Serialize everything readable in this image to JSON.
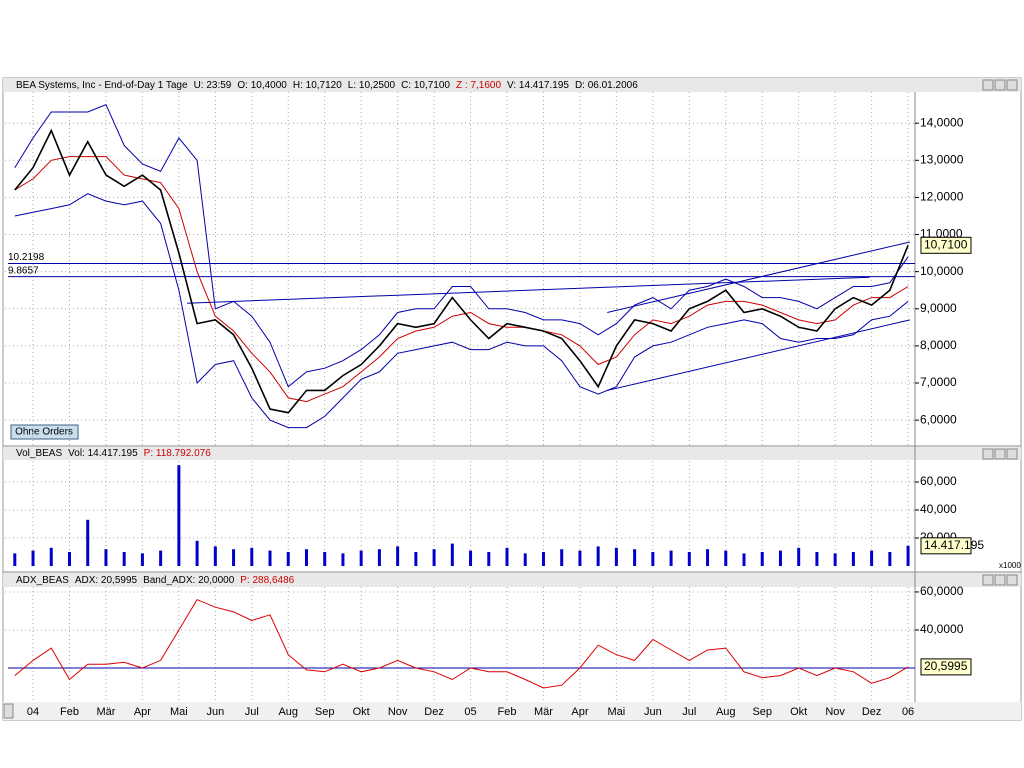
{
  "chart_data": [
    {
      "type": "line",
      "title": "BEA Systems, Inc - End-of-Day 1 Tage",
      "info": [
        "U: 23:59",
        "O: 10,4000",
        "H: 10,7120",
        "L: 10,2500",
        "C: 10,7100"
      ],
      "info_highlight": "Z : 7,1600",
      "info_tail": [
        "V: 14.417.195",
        "D: 06.01.2006"
      ],
      "ylim": [
        5.33,
        14.84
      ],
      "yticks": [
        {
          "value": 6,
          "label": "6,0000"
        },
        {
          "value": 7,
          "label": "7,0000"
        },
        {
          "value": 8,
          "label": "8,0000"
        },
        {
          "value": 9,
          "label": "9,0000"
        },
        {
          "value": 10,
          "label": "10,0000"
        },
        {
          "value": 11,
          "label": "11,0000"
        },
        {
          "value": 12,
          "label": "12,0000"
        },
        {
          "value": 13,
          "label": "13,0000"
        },
        {
          "value": 14,
          "label": "14,0000"
        }
      ],
      "series": [
        {
          "color": "#0000aa",
          "values": [
            12.8,
            13.6,
            14.3,
            14.3,
            14.3,
            14.5,
            13.4,
            12.9,
            12.7,
            13.6,
            13.0,
            9.0,
            9.2,
            8.8,
            8.1,
            6.9,
            7.3,
            7.4,
            7.6,
            7.9,
            8.3,
            8.9,
            9.0,
            9.0,
            9.6,
            9.6,
            9.0,
            9.0,
            8.9,
            8.7,
            8.7,
            8.6,
            8.3,
            8.6,
            9.1,
            9.3,
            9.0,
            9.5,
            9.6,
            9.8,
            9.6,
            9.3,
            9.3,
            9.2,
            9.0,
            9.3,
            9.6,
            9.6,
            9.7,
            10.4
          ]
        },
        {
          "color": "#0000aa",
          "values": [
            11.5,
            11.6,
            11.7,
            11.8,
            12.1,
            11.9,
            11.8,
            11.9,
            11.3,
            9.5,
            7.0,
            7.5,
            7.6,
            6.6,
            6.0,
            5.8,
            5.8,
            6.1,
            6.6,
            7.1,
            7.3,
            7.8,
            7.9,
            8.0,
            8.1,
            7.9,
            7.9,
            8.1,
            8.0,
            8.0,
            7.6,
            6.9,
            6.7,
            6.9,
            7.7,
            8.0,
            8.1,
            8.3,
            8.5,
            8.6,
            8.7,
            8.6,
            8.2,
            8.1,
            8.2,
            8.2,
            8.3,
            8.7,
            8.8,
            9.2
          ]
        },
        {
          "color": "#cc0000",
          "values": [
            12.2,
            12.5,
            13.0,
            13.1,
            13.1,
            13.1,
            12.6,
            12.5,
            12.4,
            11.7,
            10.0,
            8.8,
            8.4,
            7.8,
            7.3,
            6.6,
            6.5,
            6.7,
            6.9,
            7.3,
            7.7,
            8.2,
            8.4,
            8.5,
            8.8,
            8.9,
            8.6,
            8.5,
            8.5,
            8.4,
            8.3,
            8.0,
            7.5,
            7.7,
            8.3,
            8.7,
            8.6,
            8.8,
            9.1,
            9.2,
            9.2,
            9.1,
            8.9,
            8.7,
            8.6,
            8.7,
            9.1,
            9.3,
            9.3,
            9.6
          ]
        },
        {
          "color": "#000000",
          "values": [
            12.2,
            12.8,
            13.8,
            12.6,
            13.5,
            12.6,
            12.3,
            12.6,
            12.2,
            10.5,
            8.6,
            8.7,
            8.3,
            7.4,
            6.3,
            6.2,
            6.8,
            6.8,
            7.2,
            7.5,
            8.0,
            8.6,
            8.5,
            8.6,
            9.3,
            8.7,
            8.2,
            8.6,
            8.5,
            8.4,
            8.2,
            7.6,
            6.9,
            8.0,
            8.7,
            8.6,
            8.4,
            9.0,
            9.2,
            9.5,
            8.9,
            9.0,
            8.8,
            8.5,
            8.4,
            9.0,
            9.3,
            9.1,
            9.5,
            10.71
          ]
        }
      ],
      "levels": [
        {
          "value": 10.2198,
          "label": "10.2198"
        },
        {
          "value": 9.8657,
          "label": "9.8657"
        }
      ],
      "level_color": "#0000aa",
      "trendlines": [
        {
          "x": [
            9.45,
            46.9
          ],
          "y": [
            9.15,
            9.85
          ]
        },
        {
          "x": [
            32.5,
            49.1
          ],
          "y": [
            8.9,
            10.8
          ]
        },
        {
          "x": [
            32.5,
            49.1
          ],
          "y": [
            6.8,
            8.7
          ]
        }
      ],
      "last": {
        "value": 10.71,
        "label": "10,7100"
      },
      "button": "Ohne Orders"
    },
    {
      "type": "bar",
      "title": "Vol_BEAS",
      "info": [
        "Vol: 14.417.195"
      ],
      "info_highlight": "P: 118.792.076",
      "ylim": [
        0,
        75
      ],
      "yticks": [
        {
          "value": 20,
          "label": "20,000"
        },
        {
          "value": 40,
          "label": "40,000"
        },
        {
          "value": 60,
          "label": "60,000"
        }
      ],
      "color": "#0000cc",
      "values": [
        9,
        11,
        13,
        10,
        33,
        12,
        10,
        9,
        11,
        72,
        18,
        14,
        12,
        13,
        11,
        10,
        12,
        10,
        9,
        11,
        12,
        14,
        10,
        12,
        16,
        11,
        10,
        13,
        9,
        10,
        12,
        11,
        14,
        13,
        12,
        10,
        11,
        10,
        12,
        11,
        9,
        10,
        11,
        13,
        10,
        9,
        10,
        11,
        10,
        14.417195
      ],
      "last": {
        "value": 14.417195,
        "label": "14.417.195"
      },
      "unit_label": "x1000"
    },
    {
      "type": "line",
      "title": "ADX_BEAS",
      "info": [
        "ADX: 20,5995",
        "Band_ADX: 20,0000"
      ],
      "info_highlight": "P: 288,6486",
      "ylim": [
        3.2,
        62.6
      ],
      "yticks": [
        {
          "value": 40,
          "label": "40,0000"
        },
        {
          "value": 60,
          "label": "60,0000"
        }
      ],
      "series": [
        {
          "color": "#dd0000",
          "values": [
            16,
            24,
            30.5,
            14,
            22,
            22,
            23,
            20,
            24,
            40,
            56,
            52,
            49.5,
            45,
            48,
            27,
            19,
            18,
            22,
            18,
            20,
            24,
            20,
            18,
            14,
            20,
            18,
            18,
            14,
            9.5,
            11,
            20,
            32,
            27,
            24,
            35,
            29.5,
            24,
            29.5,
            30.5,
            18,
            15,
            16,
            20,
            16,
            20,
            18,
            12,
            15,
            20.5995
          ]
        }
      ],
      "levels": [
        {
          "value": 20
        }
      ],
      "level_color": "#0000aa",
      "last": {
        "value": 20.5995,
        "label": "20,5995"
      },
      "categories": [
        null,
        "04",
        null,
        "Feb",
        null,
        "Mär",
        null,
        "Apr",
        null,
        "Mai",
        null,
        "Jun",
        null,
        "Jul",
        null,
        "Aug",
        null,
        "Sep",
        null,
        "Okt",
        null,
        "Nov",
        null,
        "Dez",
        null,
        "05",
        null,
        "Feb",
        null,
        "Mär",
        null,
        "Apr",
        null,
        "Mai",
        null,
        "Jun",
        null,
        "Jul",
        null,
        "Aug",
        null,
        "Sep",
        null,
        "Okt",
        null,
        "Nov",
        null,
        "Dez",
        null,
        "06"
      ]
    }
  ]
}
